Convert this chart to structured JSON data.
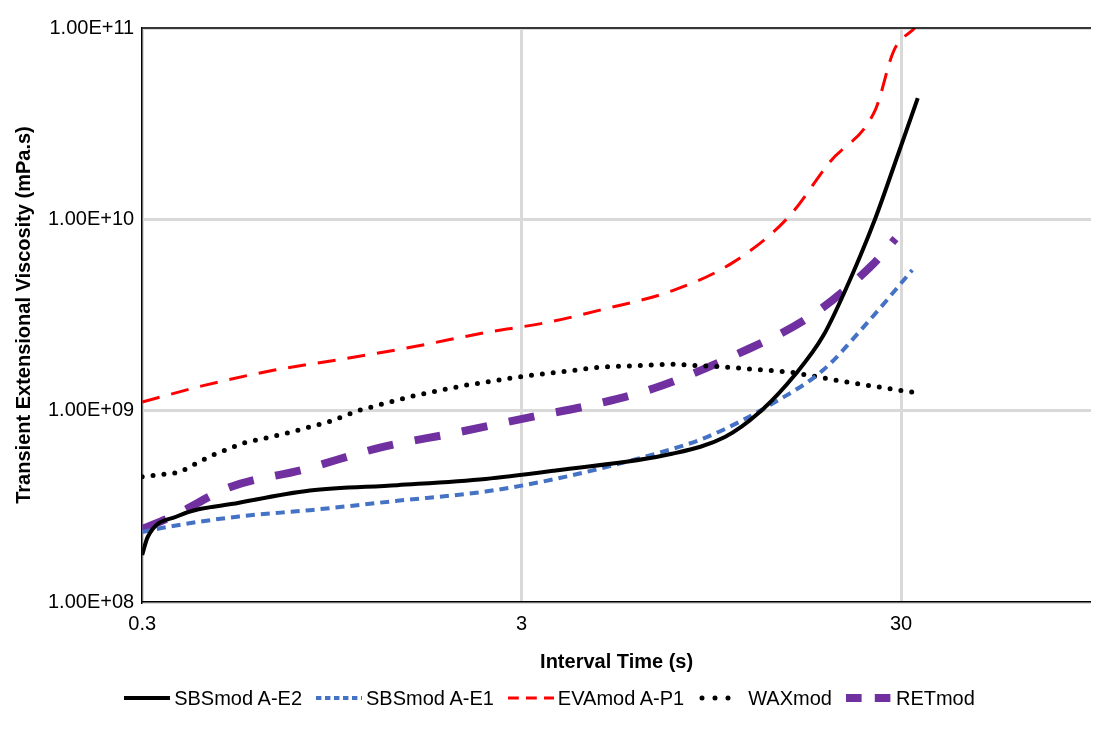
{
  "chart_data": {
    "type": "line",
    "xlabel": "Interval Time (s)",
    "ylabel": "Transient Extensional Viscosity (mPa.s)",
    "log": "xy",
    "xlim": [
      0.3,
      95
    ],
    "xticks": [
      0.3,
      3,
      30
    ],
    "ylim": [
      100000000.0,
      100000000000.0
    ],
    "yticks": [
      {
        "value": 100000000.0,
        "label": "1.00E+08"
      },
      {
        "value": 1000000000.0,
        "label": "1.00E+09"
      },
      {
        "value": 10000000000.0,
        "label": "1.00E+10"
      },
      {
        "value": 100000000000.0,
        "label": "1.00E+11"
      }
    ],
    "grid": true,
    "legend": "bottom",
    "marker": "none",
    "series": [
      {
        "name": "SBSmod A-E2",
        "color": "#000000",
        "line_style": "solid",
        "x": [
          0.3,
          0.31,
          0.37,
          0.54,
          0.83,
          1.41,
          2.41,
          3.69,
          7.47,
          10.3,
          12.7,
          15.8,
          18.7,
          22.2,
          25.7,
          29.0,
          33.2
        ],
        "values": [
          176000000.0,
          218000000.0,
          280000000.0,
          330000000.0,
          383000000.0,
          408000000.0,
          440000000.0,
          487000000.0,
          595000000.0,
          728000000.0,
          980000000.0,
          1550000000.0,
          2460000000.0,
          5030000000.0,
          10200000000.0,
          20000000000.0,
          43000000000.0
        ]
      },
      {
        "name": "SBSmod A-E1",
        "color": "#4472c4",
        "line_style": "dashed",
        "x": [
          0.3,
          0.35,
          0.54,
          0.83,
          1.41,
          2.41,
          3.69,
          6.45,
          9.23,
          14.2,
          18.7,
          24.1,
          32.1
        ],
        "values": [
          232000000.0,
          247000000.0,
          280000000.0,
          302000000.0,
          338000000.0,
          378000000.0,
          440000000.0,
          580000000.0,
          728000000.0,
          1130000000.0,
          1630000000.0,
          2790000000.0,
          5430000000.0
        ]
      },
      {
        "name": "EVAmod A-P1",
        "color": "#ff0000",
        "line_style": "dashed",
        "x": [
          0.3,
          0.44,
          0.67,
          1.03,
          1.58,
          2.41,
          3.53,
          4.87,
          7.47,
          10.8,
          15.1,
          19.5,
          25.7,
          28.7,
          32.6
        ],
        "values": [
          1110000000.0,
          1360000000.0,
          1630000000.0,
          1870000000.0,
          2170000000.0,
          2560000000.0,
          2900000000.0,
          3370000000.0,
          4230000000.0,
          5940000000.0,
          10200000000.0,
          20000000000.0,
          37600000000.0,
          76000000000.0,
          100000000000.0
        ]
      },
      {
        "name": "WAXmod",
        "color": "#000000",
        "line_style": "dotted",
        "x": [
          0.3,
          0.375,
          0.455,
          0.55,
          0.69,
          0.92,
          1.13,
          1.54,
          2.1,
          2.86,
          3.53,
          4.87,
          7.47,
          10.3,
          15.4,
          21.2,
          32.0
        ],
        "values": [
          452000000.0,
          475000000.0,
          580000000.0,
          675000000.0,
          746000000.0,
          867000000.0,
          1010000000.0,
          1190000000.0,
          1350000000.0,
          1490000000.0,
          1570000000.0,
          1690000000.0,
          1750000000.0,
          1690000000.0,
          1590000000.0,
          1420000000.0,
          1250000000.0
        ]
      },
      {
        "name": "RETmod",
        "color": "#7030a0",
        "line_style": "dashed",
        "x": [
          0.3,
          0.36,
          0.51,
          0.8,
          1.27,
          2.0,
          3.25,
          4.39,
          6.7,
          11.2,
          17.5,
          25.2,
          29.0
        ],
        "values": [
          241000000.0,
          280000000.0,
          398000000.0,
          493000000.0,
          641000000.0,
          765000000.0,
          935000000.0,
          1050000000.0,
          1310000000.0,
          1990000000.0,
          3160000000.0,
          5780000000.0,
          7920000000.0
        ]
      }
    ]
  }
}
